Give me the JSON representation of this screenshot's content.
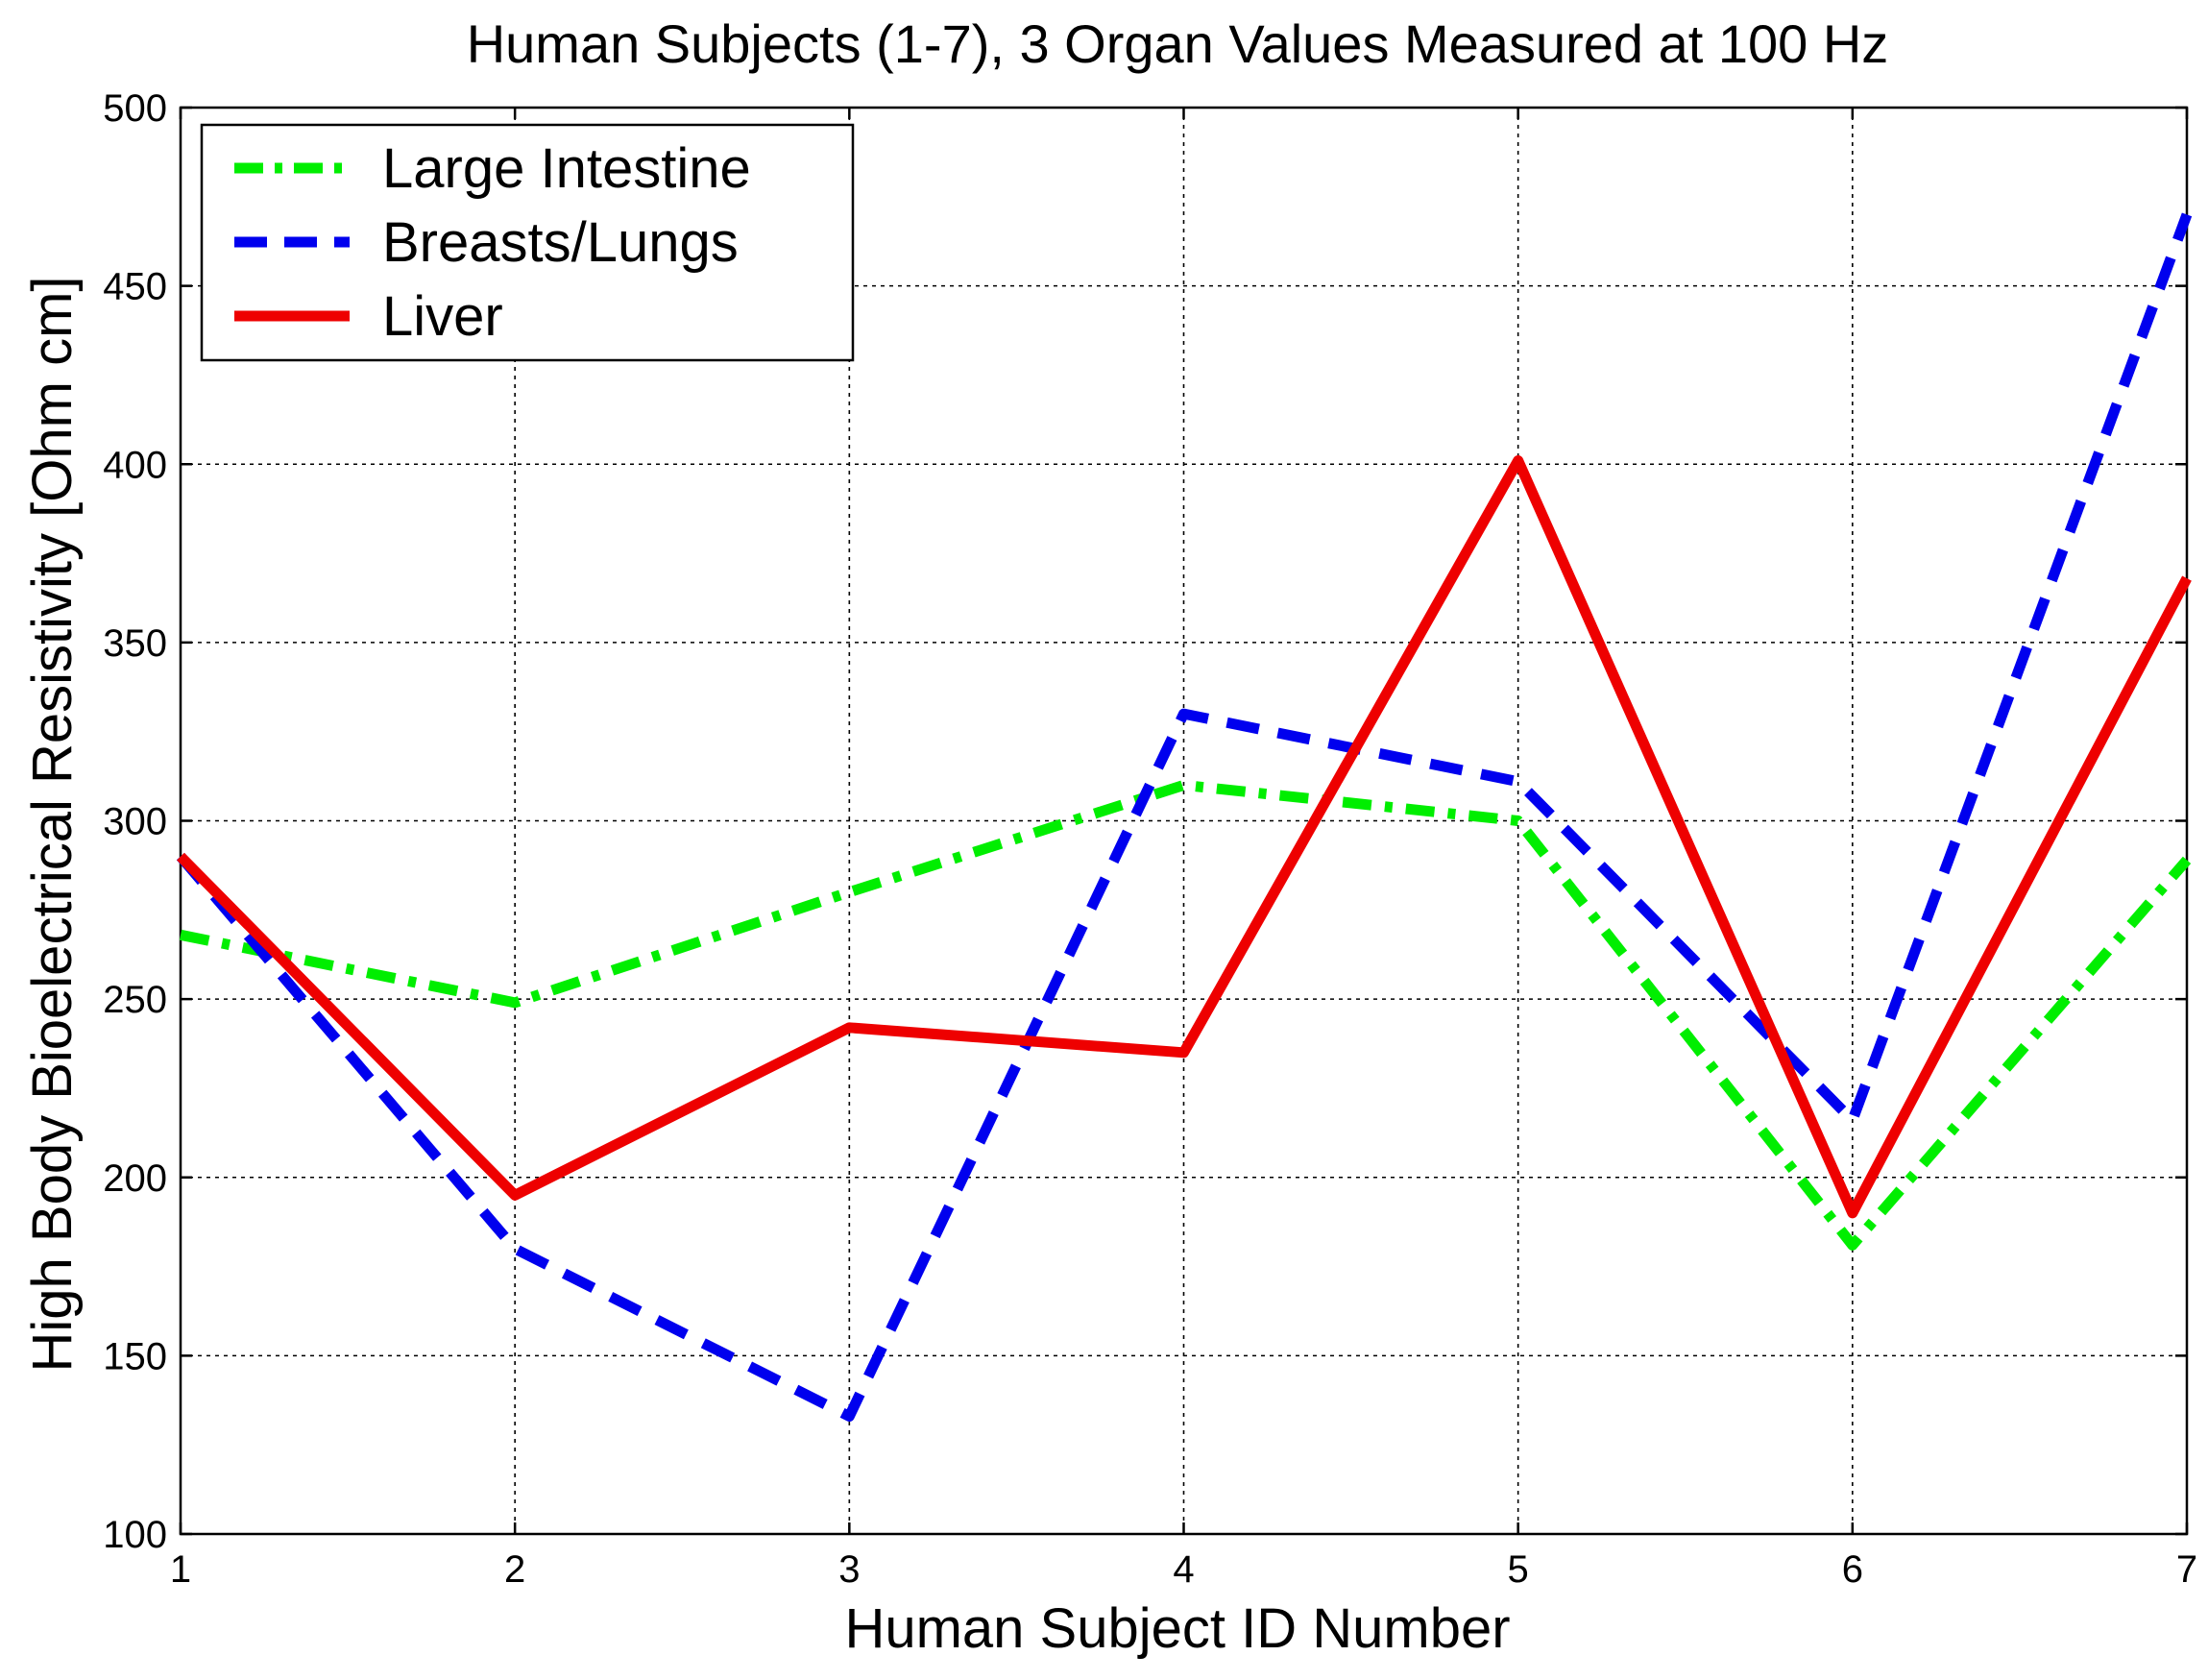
{
  "chart_data": {
    "type": "line",
    "title": "Human Subjects (1-7), 3 Organ Values Measured at 100 Hz",
    "xlabel": "Human Subject ID Number",
    "ylabel": "High Body Bioelectrical Resistivity [Ohm cm]",
    "xlim": [
      1,
      7
    ],
    "ylim": [
      100,
      500
    ],
    "xticks": [
      1,
      2,
      3,
      4,
      5,
      6,
      7
    ],
    "yticks": [
      100,
      150,
      200,
      250,
      300,
      350,
      400,
      450,
      500
    ],
    "grid": true,
    "legend_position": "top-left",
    "x": [
      1,
      2,
      3,
      4,
      5,
      6,
      7
    ],
    "series": [
      {
        "name": "Large Intestine",
        "color": "#00ee00",
        "line_style": "dash-dot",
        "values": [
          268,
          249,
          280,
          310,
          300,
          181,
          289
        ]
      },
      {
        "name": "Breasts/Lungs",
        "color": "#0000ee",
        "line_style": "dashed",
        "values": [
          290,
          180,
          133,
          330,
          311,
          216,
          470
        ]
      },
      {
        "name": "Liver",
        "color": "#ee0000",
        "line_style": "solid",
        "values": [
          290,
          195,
          242,
          235,
          401,
          190,
          368
        ]
      }
    ]
  }
}
